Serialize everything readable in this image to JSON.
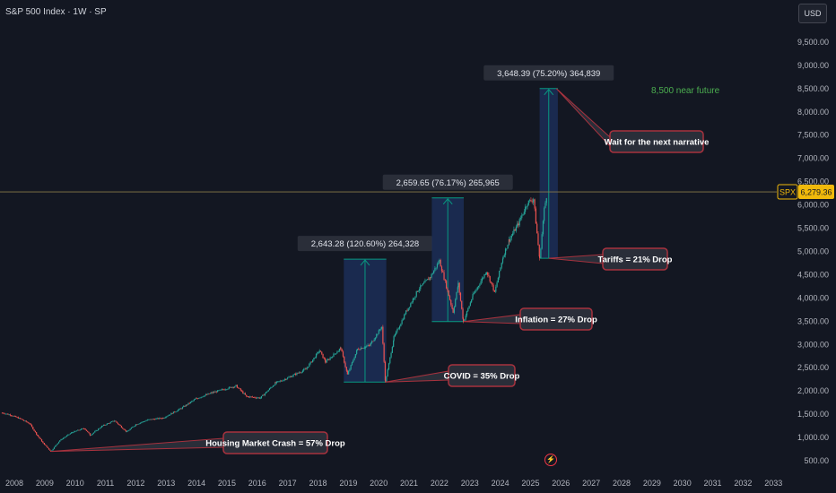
{
  "header": {
    "title": "S&P 500 Index · 1W · SP",
    "currency_button": "USD"
  },
  "colors": {
    "background": "#131722",
    "candle_up": "#26a69a",
    "candle_down": "#ef5350",
    "range_fill": "#1c2e57",
    "range_line": "#089981",
    "callout_fill": "#2a2e39",
    "callout_border": "#a8323e",
    "price_line": "#8a7a4a",
    "price_tag": "#f0b90b",
    "future_text": "#4caf50"
  },
  "chart_data": {
    "type": "candlestick",
    "title": "S&P 500 Index · 1W · SP",
    "symbol": "SPX",
    "last_price": "6,279.36",
    "x_ticks": [
      "2008",
      "2009",
      "2010",
      "2011",
      "2012",
      "2013",
      "2014",
      "2015",
      "2016",
      "2017",
      "2018",
      "2019",
      "2020",
      "2021",
      "2022",
      "2023",
      "2024",
      "2025",
      "2026",
      "2027",
      "2028",
      "2029",
      "2030",
      "2031",
      "2032",
      "2033"
    ],
    "y_ticks": [
      "9,500.00",
      "9,000.00",
      "8,500.00",
      "8,000.00",
      "7,500.00",
      "7,000.00",
      "6,500.00",
      "6,000.00",
      "5,500.00",
      "5,000.00",
      "4,500.00",
      "4,000.00",
      "3,500.00",
      "3,000.00",
      "2,500.00",
      "2,000.00",
      "1,500.00",
      "1,000.00",
      "500.00"
    ],
    "y_range": [
      400,
      10000
    ],
    "x_range": [
      2007.6,
      2033.9
    ],
    "price_series": [
      {
        "x": 2007.6,
        "y": 1530
      },
      {
        "x": 2007.9,
        "y": 1480
      },
      {
        "x": 2008.2,
        "y": 1400
      },
      {
        "x": 2008.5,
        "y": 1300
      },
      {
        "x": 2008.75,
        "y": 1050
      },
      {
        "x": 2008.95,
        "y": 880
      },
      {
        "x": 2009.2,
        "y": 700
      },
      {
        "x": 2009.5,
        "y": 940
      },
      {
        "x": 2009.9,
        "y": 1110
      },
      {
        "x": 2010.3,
        "y": 1200
      },
      {
        "x": 2010.5,
        "y": 1050
      },
      {
        "x": 2010.9,
        "y": 1250
      },
      {
        "x": 2011.3,
        "y": 1360
      },
      {
        "x": 2011.7,
        "y": 1120
      },
      {
        "x": 2012.0,
        "y": 1280
      },
      {
        "x": 2012.4,
        "y": 1380
      },
      {
        "x": 2012.9,
        "y": 1420
      },
      {
        "x": 2013.5,
        "y": 1630
      },
      {
        "x": 2014.0,
        "y": 1840
      },
      {
        "x": 2014.5,
        "y": 1960
      },
      {
        "x": 2015.3,
        "y": 2110
      },
      {
        "x": 2015.65,
        "y": 1880
      },
      {
        "x": 2016.1,
        "y": 1850
      },
      {
        "x": 2016.6,
        "y": 2170
      },
      {
        "x": 2017.0,
        "y": 2280
      },
      {
        "x": 2017.6,
        "y": 2470
      },
      {
        "x": 2018.05,
        "y": 2870
      },
      {
        "x": 2018.25,
        "y": 2620
      },
      {
        "x": 2018.75,
        "y": 2920
      },
      {
        "x": 2018.97,
        "y": 2350
      },
      {
        "x": 2019.3,
        "y": 2900
      },
      {
        "x": 2019.7,
        "y": 2980
      },
      {
        "x": 2020.1,
        "y": 3380
      },
      {
        "x": 2020.22,
        "y": 2190
      },
      {
        "x": 2020.5,
        "y": 3150
      },
      {
        "x": 2020.9,
        "y": 3700
      },
      {
        "x": 2021.3,
        "y": 4180
      },
      {
        "x": 2021.7,
        "y": 4450
      },
      {
        "x": 2022.0,
        "y": 4800
      },
      {
        "x": 2022.45,
        "y": 3700
      },
      {
        "x": 2022.62,
        "y": 4300
      },
      {
        "x": 2022.79,
        "y": 3490
      },
      {
        "x": 2023.1,
        "y": 4050
      },
      {
        "x": 2023.55,
        "y": 4580
      },
      {
        "x": 2023.82,
        "y": 4120
      },
      {
        "x": 2024.1,
        "y": 4900
      },
      {
        "x": 2024.3,
        "y": 5250
      },
      {
        "x": 2024.6,
        "y": 5600
      },
      {
        "x": 2024.9,
        "y": 6050
      },
      {
        "x": 2025.1,
        "y": 6120
      },
      {
        "x": 2025.3,
        "y": 4830
      },
      {
        "x": 2025.45,
        "y": 5900
      },
      {
        "x": 2025.55,
        "y": 6279
      }
    ],
    "measurements": [
      {
        "label": "2,643.28 (120.60%) 264,328",
        "x_start": 2018.85,
        "x_end": 2020.25,
        "y_low": 2191,
        "y_high": 4834
      },
      {
        "label": "2,659.65 (76.17%) 265,965",
        "x_start": 2021.75,
        "x_end": 2022.8,
        "y_low": 3491,
        "y_high": 6150
      },
      {
        "label": "3,648.39 (75.20%) 364,839",
        "x_start": 2025.3,
        "x_end": 2025.9,
        "y_low": 4852,
        "y_high": 8500
      }
    ],
    "callouts": [
      {
        "text": "Housing Market Crash = 57% Drop",
        "point_x": 2009.2,
        "point_y": 700
      },
      {
        "text": "COVID = 35% Drop",
        "point_x": 2020.22,
        "point_y": 2191
      },
      {
        "text": "Inflation = 27% Drop",
        "point_x": 2022.8,
        "point_y": 3491
      },
      {
        "text": "Tariffs = 21% Drop",
        "point_x": 2025.6,
        "point_y": 4852
      },
      {
        "text": "Wait for the next narrative",
        "point_x": 2025.85,
        "point_y": 8500
      }
    ],
    "annotation": "8,500 near future"
  }
}
